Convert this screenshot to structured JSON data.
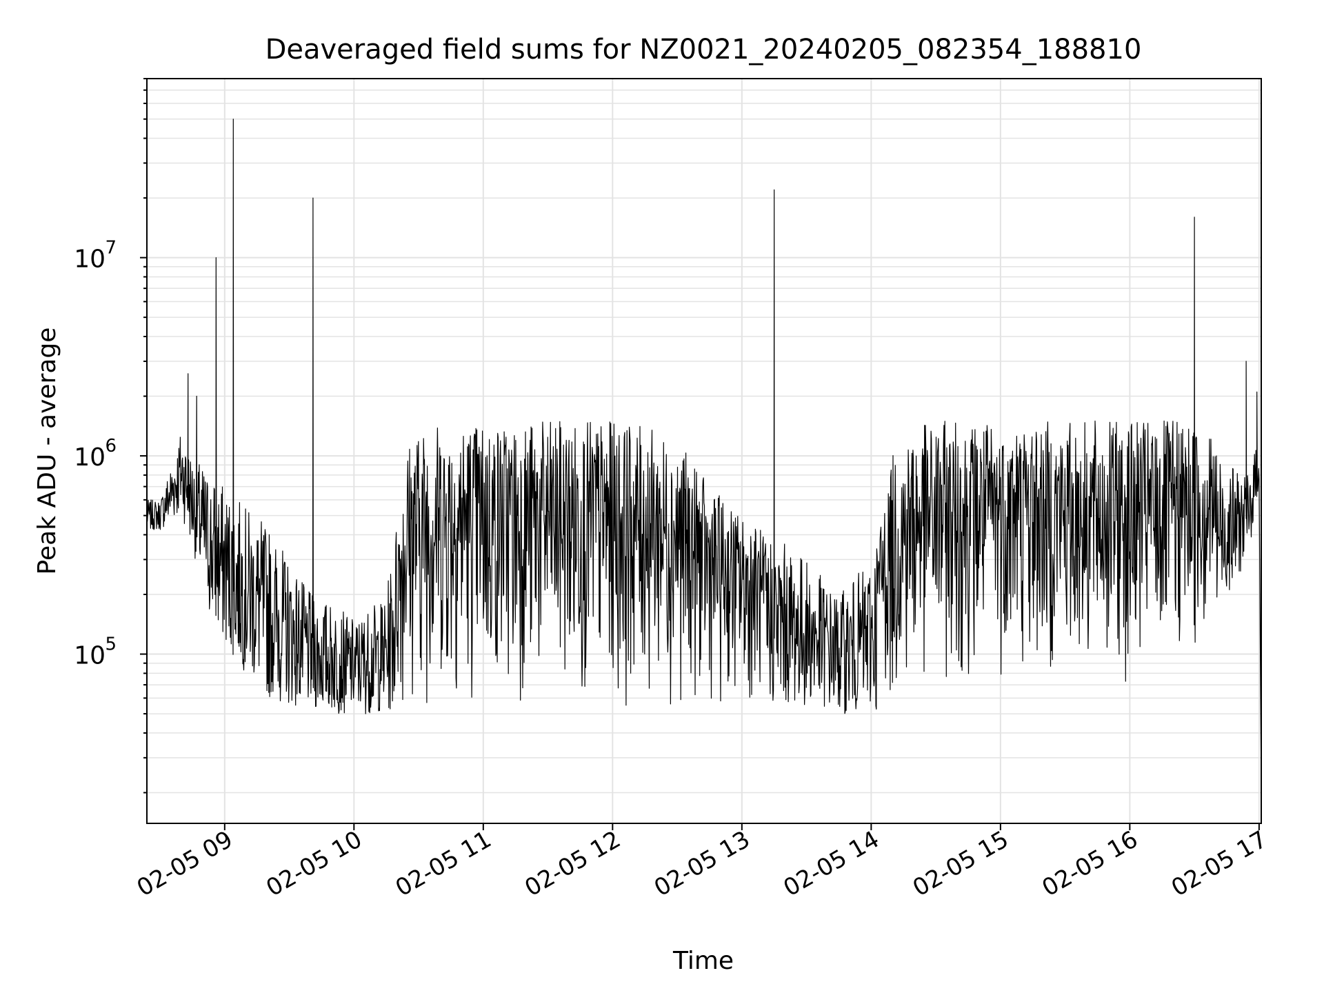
{
  "colors": {
    "background": "#ffffff",
    "grid": "#e3e3e3",
    "line": "#000000",
    "axis": "#000000"
  },
  "chart_data": {
    "type": "line",
    "title": "Deaveraged field sums for NZ0021_20240205_082354_188810",
    "xlabel": "Time",
    "ylabel": "Peak ADU - average",
    "x_type": "datetime",
    "xlim": [
      "2024-02-05 08:23:54",
      "2024-02-05 17:01:00"
    ],
    "ylim": [
      14000,
      80000000
    ],
    "y_scale": "log",
    "grid": true,
    "x_ticks": [
      "2024-02-05 09:00",
      "2024-02-05 10:00",
      "2024-02-05 11:00",
      "2024-02-05 12:00",
      "2024-02-05 13:00",
      "2024-02-05 14:00",
      "2024-02-05 15:00",
      "2024-02-05 16:00",
      "2024-02-05 17:00"
    ],
    "x_tick_labels": [
      "02-05 09",
      "02-05 10",
      "02-05 11",
      "02-05 12",
      "02-05 13",
      "02-05 14",
      "02-05 15",
      "02-05 16",
      "02-05 17"
    ],
    "y_ticks": [
      100000,
      1000000,
      10000000
    ],
    "y_tick_labels": [
      {
        "base": "10",
        "exp": "5"
      },
      {
        "base": "10",
        "exp": "6"
      },
      {
        "base": "10",
        "exp": "7"
      }
    ],
    "series": [
      {
        "color": "#000000",
        "envelope_note_free": true,
        "times": [
          "2024-02-05 08:23:54",
          "2024-02-05 08:30",
          "2024-02-05 08:40",
          "2024-02-05 08:45",
          "2024-02-05 08:50",
          "2024-02-05 08:55",
          "2024-02-05 09:00",
          "2024-02-05 09:10",
          "2024-02-05 09:20",
          "2024-02-05 09:30",
          "2024-02-05 09:40",
          "2024-02-05 09:50",
          "2024-02-05 10:00",
          "2024-02-05 10:15",
          "2024-02-05 10:25",
          "2024-02-05 10:35",
          "2024-02-05 10:45",
          "2024-02-05 11:00",
          "2024-02-05 11:30",
          "2024-02-05 12:00",
          "2024-02-05 12:15",
          "2024-02-05 12:30",
          "2024-02-05 12:45",
          "2024-02-05 13:00",
          "2024-02-05 13:15",
          "2024-02-05 13:30",
          "2024-02-05 13:45",
          "2024-02-05 14:00",
          "2024-02-05 14:10",
          "2024-02-05 14:20",
          "2024-02-05 14:30",
          "2024-02-05 14:45",
          "2024-02-05 15:00",
          "2024-02-05 15:30",
          "2024-02-05 16:00",
          "2024-02-05 16:20",
          "2024-02-05 16:35",
          "2024-02-05 16:45",
          "2024-02-05 16:55",
          "2024-02-05 17:00"
        ],
        "upper": [
          600000,
          600000,
          1400000,
          1000000,
          900000,
          800000,
          700000,
          550000,
          450000,
          300000,
          200000,
          180000,
          150000,
          200000,
          1200000,
          1500000,
          1500000,
          1500000,
          1500000,
          1500000,
          1400000,
          1200000,
          700000,
          500000,
          400000,
          300000,
          200000,
          300000,
          1000000,
          1400000,
          1500000,
          1500000,
          1500000,
          1500000,
          1500000,
          1500000,
          1500000,
          900000,
          800000,
          1300000
        ],
        "lower": [
          420000,
          420000,
          500000,
          350000,
          200000,
          130000,
          110000,
          80000,
          60000,
          55000,
          52000,
          50000,
          50000,
          50000,
          52000,
          55000,
          55000,
          55000,
          55000,
          55000,
          55000,
          55000,
          55000,
          55000,
          55000,
          55000,
          50000,
          50000,
          55000,
          60000,
          65000,
          70000,
          75000,
          70000,
          70000,
          80000,
          100000,
          200000,
          300000,
          700000
        ]
      }
    ],
    "spikes": [
      {
        "time": "2024-02-05 08:56",
        "value": 10000000
      },
      {
        "time": "2024-02-05 09:04",
        "value": 50000000
      },
      {
        "time": "2024-02-05 09:41",
        "value": 20000000
      },
      {
        "time": "2024-02-05 13:15",
        "value": 22000000
      },
      {
        "time": "2024-02-05 16:30",
        "value": 16000000
      },
      {
        "time": "2024-02-05 16:54",
        "value": 3000000
      },
      {
        "time": "2024-02-05 16:59",
        "value": 2100000
      },
      {
        "time": "2024-02-05 08:43",
        "value": 2600000
      },
      {
        "time": "2024-02-05 08:47",
        "value": 2000000
      }
    ],
    "tail": [
      {
        "time": "2024-02-05 17:01:00",
        "value": 20000
      }
    ]
  }
}
